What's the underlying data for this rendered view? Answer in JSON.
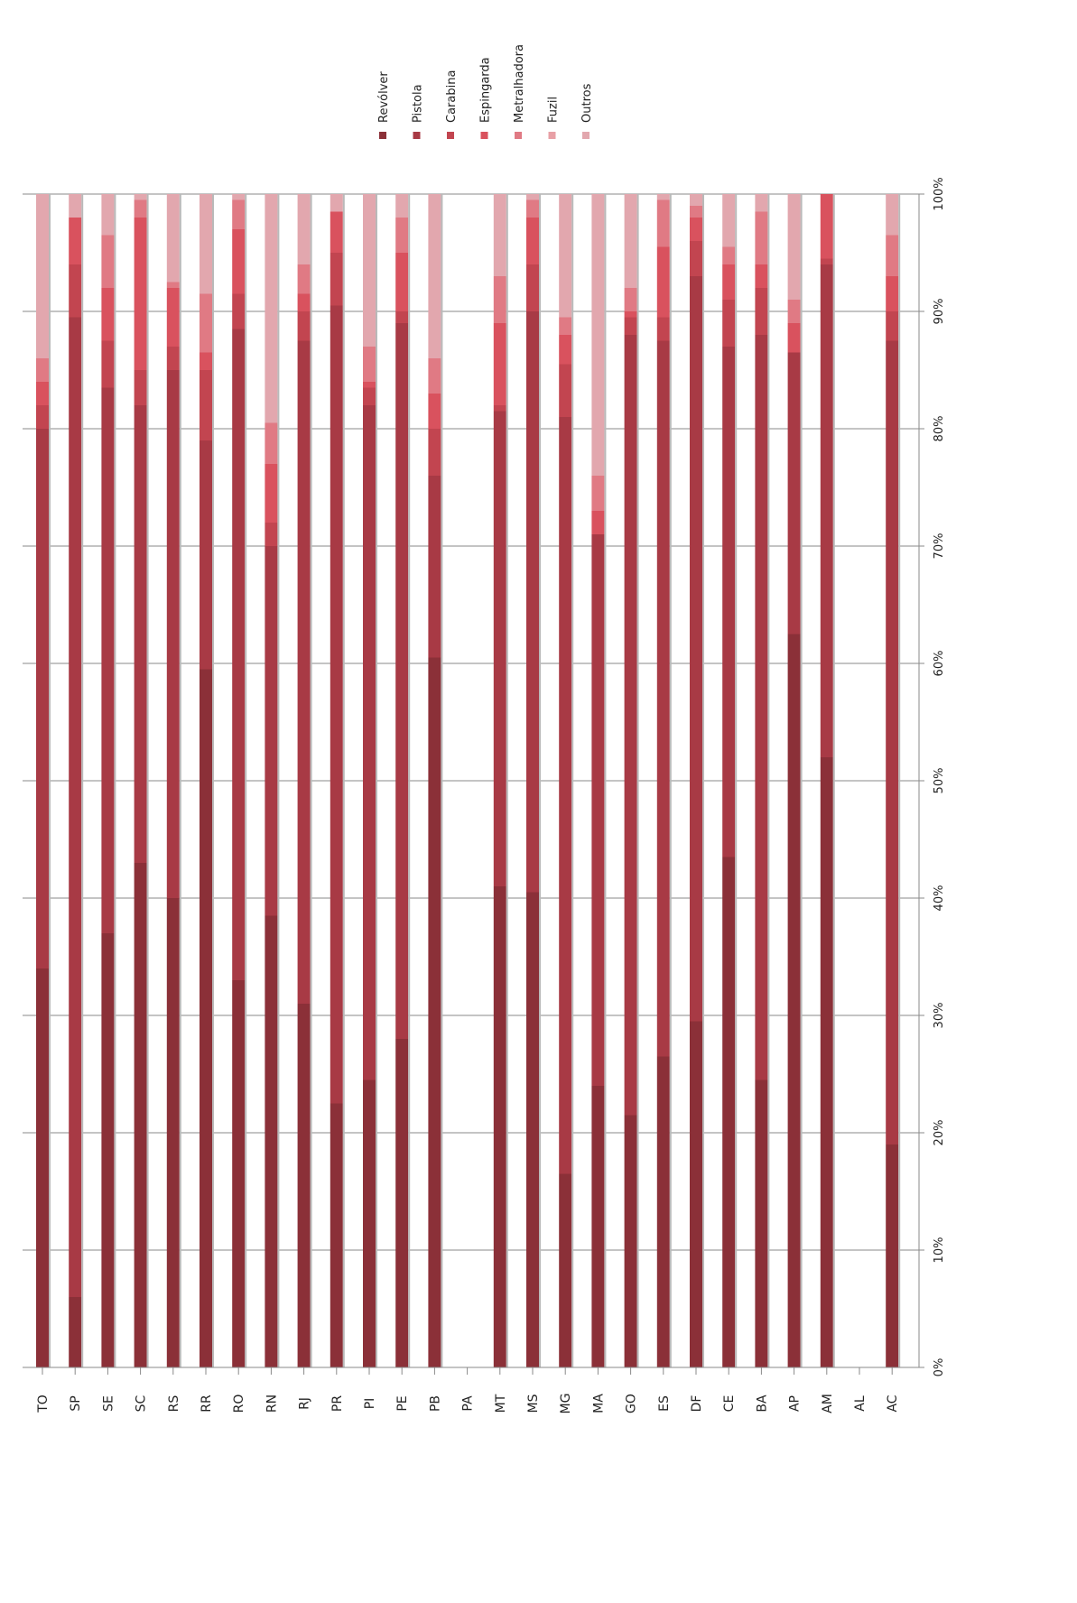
{
  "chart_data": {
    "type": "bar",
    "stacked": true,
    "percent": true,
    "orientation": "rotated-90-clockwise",
    "categories": [
      "TO",
      "SP",
      "SE",
      "SC",
      "RS",
      "RR",
      "RO",
      "RN",
      "RJ",
      "PR",
      "PI",
      "PE",
      "PB",
      "PA",
      "MT",
      "MS",
      "MG",
      "MA",
      "GO",
      "ES",
      "DF",
      "CE",
      "BA",
      "AP",
      "AM",
      "AL",
      "AC"
    ],
    "value_ticks": [
      "0%",
      "10%",
      "20%",
      "30%",
      "40%",
      "50%",
      "60%",
      "70%",
      "80%",
      "90%",
      "100%"
    ],
    "ylim": [
      0,
      100
    ],
    "grid": true,
    "legend_position": "top",
    "series": [
      {
        "name": "Revólver",
        "color": "#8b3038",
        "values": [
          34,
          6,
          37,
          43,
          40,
          59.5,
          33,
          38.5,
          31,
          22.5,
          24.5,
          28,
          60.5,
          0,
          41,
          40.5,
          16.5,
          24,
          21.5,
          26.5,
          29.5,
          43.5,
          24.5,
          62.5,
          52,
          0,
          19
        ]
      },
      {
        "name": "Pistola",
        "color": "#a83a45",
        "values": [
          46,
          83.5,
          46.5,
          39,
          45,
          19.5,
          55.5,
          31.5,
          56.5,
          68,
          57.5,
          61,
          15.5,
          0,
          40.5,
          49.5,
          64.5,
          47,
          66.5,
          61,
          63.5,
          43.5,
          63.5,
          24,
          42,
          0,
          68.5
        ]
      },
      {
        "name": "Carabina",
        "color": "#c24550",
        "values": [
          2,
          4.5,
          4,
          3,
          2,
          6,
          3,
          2,
          2.5,
          4.5,
          1.5,
          1,
          4,
          0,
          0.5,
          4,
          4.5,
          0,
          1.5,
          2,
          3,
          4,
          4,
          0,
          0.5,
          0,
          2.5
        ]
      },
      {
        "name": "Espingarda",
        "color": "#d9525e",
        "values": [
          2,
          4,
          4.5,
          13,
          5,
          1.5,
          5.5,
          5,
          1.5,
          3.5,
          0.5,
          5,
          3,
          0,
          7,
          4,
          2.5,
          2,
          0.5,
          6,
          2,
          3,
          2,
          2.5,
          5.5,
          0,
          3
        ]
      },
      {
        "name": "Metralhadora",
        "color": "#e07a84",
        "values": [
          2,
          0,
          4.5,
          1.5,
          0.5,
          5,
          2.5,
          3.5,
          2.5,
          0,
          3,
          3,
          3,
          0,
          4,
          1.5,
          1.5,
          3,
          2,
          4,
          1,
          1.5,
          4.5,
          2,
          0,
          0,
          3.5
        ]
      },
      {
        "name": "Fuzil",
        "color": "#e8a0a6",
        "values": [
          0,
          0,
          0,
          0,
          0,
          0,
          0,
          0,
          0,
          0,
          0,
          0,
          0,
          0,
          0,
          0,
          0,
          0,
          0,
          0,
          0,
          0,
          0,
          0,
          0,
          0,
          0
        ]
      },
      {
        "name": "Outros",
        "color": "#e2a7ae",
        "values": [
          14,
          2,
          3.5,
          0.5,
          7.5,
          8.5,
          0.5,
          19.5,
          6,
          1.5,
          13,
          2,
          14,
          0,
          7,
          0.5,
          10.5,
          24,
          8,
          0.5,
          1,
          4.5,
          1.5,
          9,
          0,
          0,
          3.5
        ]
      }
    ]
  }
}
